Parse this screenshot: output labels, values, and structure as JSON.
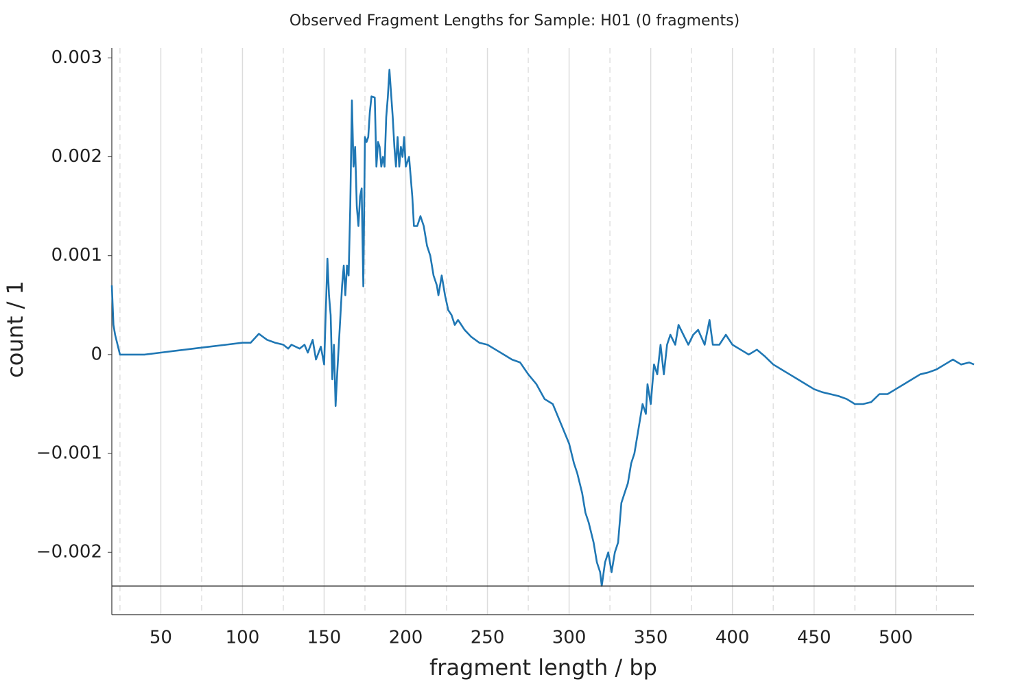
{
  "chart_data": {
    "type": "line",
    "title": "Observed Fragment Lengths for Sample: H01 (0 fragments)",
    "x_label": "fragment length / bp",
    "y_label": "count / 1",
    "xlim": [
      20,
      548
    ],
    "ylim": [
      -0.00263,
      0.0031
    ],
    "xticks": [
      50,
      100,
      150,
      200,
      250,
      300,
      350,
      400,
      450,
      500
    ],
    "xminor_ticks": [
      25,
      75,
      125,
      175,
      225,
      275,
      325,
      375,
      425,
      475,
      525
    ],
    "yticks": [
      {
        "value": -0.002,
        "label": "−0.002"
      },
      {
        "value": -0.001,
        "label": "−0.001"
      },
      0,
      0.001,
      0.002,
      0.003
    ],
    "grid": true,
    "hline": -0.00234,
    "hline_color": "#333333",
    "series": [
      {
        "color": "#1f77b4",
        "x": [
          20,
          21,
          22,
          25,
          30,
          40,
          50,
          60,
          70,
          80,
          90,
          100,
          105,
          110,
          115,
          120,
          125,
          128,
          130,
          135,
          138,
          140,
          143,
          145,
          148,
          150,
          152,
          153,
          154,
          155,
          156,
          157,
          158,
          160,
          161,
          162,
          163,
          164,
          165,
          166,
          167,
          168,
          169,
          170,
          171,
          172,
          173,
          174,
          175,
          176,
          177,
          178,
          179,
          181,
          182,
          183,
          184,
          185,
          186,
          187,
          188,
          189,
          190,
          192,
          193,
          194,
          195,
          196,
          197,
          198,
          199,
          200,
          202,
          204,
          205,
          207,
          209,
          211,
          213,
          215,
          217,
          219,
          220,
          222,
          224,
          226,
          228,
          230,
          232,
          234,
          236,
          240,
          245,
          250,
          255,
          260,
          265,
          270,
          275,
          280,
          285,
          290,
          295,
          300,
          303,
          305,
          308,
          310,
          312,
          315,
          317,
          319,
          320,
          322,
          324,
          326,
          328,
          330,
          332,
          334,
          336,
          338,
          340,
          342,
          345,
          347,
          348,
          350,
          352,
          354,
          356,
          358,
          360,
          362,
          365,
          367,
          370,
          373,
          376,
          379,
          383,
          386,
          388,
          392,
          396,
          400,
          405,
          410,
          415,
          420,
          425,
          430,
          435,
          440,
          445,
          450,
          455,
          460,
          465,
          470,
          475,
          480,
          485,
          490,
          495,
          500,
          505,
          510,
          515,
          520,
          525,
          530,
          535,
          540,
          545,
          548
        ],
        "values": [
          0.0007,
          0.0003,
          0.0002,
          0.0,
          0.0,
          0.0,
          2e-05,
          4e-05,
          6e-05,
          8e-05,
          0.0001,
          0.00012,
          0.00012,
          0.00021,
          0.00015,
          0.00012,
          0.0001,
          6e-05,
          0.0001,
          6e-05,
          0.0001,
          2e-05,
          0.00015,
          -5e-05,
          8e-05,
          -0.0001,
          0.00097,
          0.0006,
          0.0004,
          -0.00025,
          0.0001,
          -0.00052,
          -0.0002,
          0.0004,
          0.0007,
          0.0009,
          0.0006,
          0.0009,
          0.0008,
          0.0015,
          0.00257,
          0.0019,
          0.0021,
          0.0015,
          0.0013,
          0.0016,
          0.00168,
          0.00069,
          0.0022,
          0.00215,
          0.0022,
          0.00245,
          0.00261,
          0.0026,
          0.0019,
          0.00215,
          0.0021,
          0.0019,
          0.002,
          0.0019,
          0.0024,
          0.0026,
          0.00288,
          0.0024,
          0.0021,
          0.0019,
          0.0022,
          0.0019,
          0.0021,
          0.002,
          0.0022,
          0.0019,
          0.002,
          0.0016,
          0.0013,
          0.0013,
          0.0014,
          0.0013,
          0.0011,
          0.001,
          0.0008,
          0.0007,
          0.0006,
          0.0008,
          0.0006,
          0.00045,
          0.0004,
          0.0003,
          0.00035,
          0.0003,
          0.00025,
          0.00018,
          0.00012,
          0.0001,
          5e-05,
          0.0,
          -5e-05,
          -8e-05,
          -0.0002,
          -0.0003,
          -0.00045,
          -0.0005,
          -0.0007,
          -0.0009,
          -0.0011,
          -0.0012,
          -0.0014,
          -0.0016,
          -0.0017,
          -0.0019,
          -0.0021,
          -0.0022,
          -0.00234,
          -0.0021,
          -0.002,
          -0.0022,
          -0.002,
          -0.0019,
          -0.0015,
          -0.0014,
          -0.0013,
          -0.0011,
          -0.001,
          -0.0008,
          -0.0005,
          -0.0006,
          -0.0003,
          -0.0005,
          -0.0001,
          -0.0002,
          0.0001,
          -0.0002,
          0.0001,
          0.0002,
          0.0001,
          0.0003,
          0.0002,
          0.0001,
          0.0002,
          0.00025,
          0.0001,
          0.00035,
          0.0001,
          0.0001,
          0.0002,
          0.0001,
          5e-05,
          0.0,
          5e-05,
          -2e-05,
          -0.0001,
          -0.00015,
          -0.0002,
          -0.00025,
          -0.0003,
          -0.00035,
          -0.00038,
          -0.0004,
          -0.00042,
          -0.00045,
          -0.0005,
          -0.0005,
          -0.00048,
          -0.0004,
          -0.0004,
          -0.00035,
          -0.0003,
          -0.00025,
          -0.0002,
          -0.00018,
          -0.00015,
          -0.0001,
          -5e-05,
          -0.0001,
          -8e-05,
          -0.0001
        ]
      }
    ]
  }
}
